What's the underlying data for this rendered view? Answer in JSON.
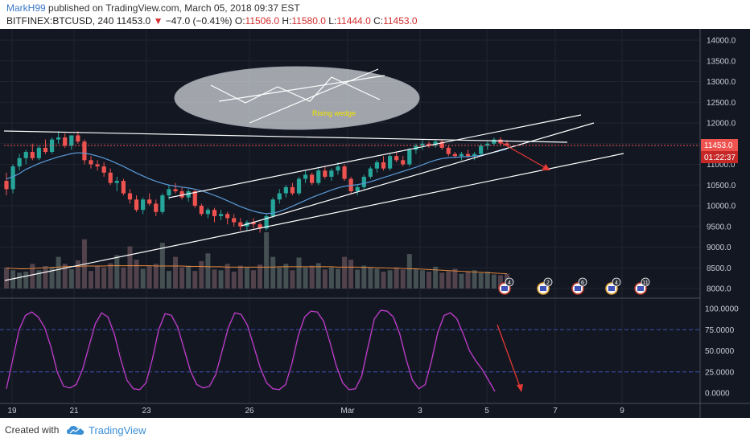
{
  "header": {
    "author": "MarkH99",
    "published": "published on TradingView.com, March 05, 2018 09:37 EST",
    "symbol": "BITFINEX:BTCUSD, 240",
    "last": "11453.0",
    "change": "−47.0 (−0.41%)",
    "o_label": "O:",
    "o": "11506.0",
    "h_label": "H:",
    "h": "11580.0",
    "l_label": "L:",
    "l": "11444.0",
    "c_label": "C:",
    "c": "11453.0"
  },
  "footer": {
    "created_with": "Created with",
    "brand": "TradingView"
  },
  "annotation": {
    "text": "Rising wedge"
  },
  "price_tags": {
    "last": "11453.0",
    "countdown": "01:22:37"
  },
  "event_markers": [
    "4",
    "2",
    "6",
    "4",
    "11"
  ],
  "colors": {
    "up": "#26a69a",
    "down": "#ef5350",
    "stoch_k": "#c13ccf",
    "stoch_d": "#1b1e26",
    "ma": "#5a9bd8",
    "bg": "#131722",
    "vol_ma": "#e8893a",
    "ref": "#3f51b5",
    "arrow": "#e53935"
  },
  "chart_data": [
    {
      "type": "candlestick",
      "symbol": "BITFINEX:BTCUSD",
      "interval": "240",
      "y_ticks": [
        "8000.0",
        "8500.0",
        "9000.0",
        "9500.0",
        "10000.0",
        "10500.0",
        "11000.0",
        "11500.0",
        "12000.0",
        "12500.0",
        "13000.0",
        "13500.0",
        "14000.0"
      ],
      "x_ticks": [
        "19",
        "21",
        "23",
        "26",
        "Mar",
        "3",
        "5",
        "7",
        "9"
      ],
      "ylim": [
        7800,
        14300
      ],
      "ohlc": [
        [
          10600,
          10800,
          10250,
          10400
        ],
        [
          10400,
          11000,
          10300,
          10950
        ],
        [
          10950,
          11250,
          10850,
          11150
        ],
        [
          11150,
          11350,
          11000,
          11300
        ],
        [
          11300,
          11500,
          11100,
          11150
        ],
        [
          11150,
          11450,
          11100,
          11400
        ],
        [
          11400,
          11600,
          11250,
          11300
        ],
        [
          11300,
          11650,
          11250,
          11600
        ],
        [
          11600,
          11800,
          11500,
          11650
        ],
        [
          11650,
          11750,
          11400,
          11450
        ],
        [
          11450,
          11700,
          11350,
          11700
        ],
        [
          11700,
          11800,
          11500,
          11550
        ],
        [
          11550,
          11600,
          11000,
          11100
        ],
        [
          11100,
          11200,
          10900,
          11000
        ],
        [
          11000,
          11100,
          10850,
          10950
        ],
        [
          10950,
          11050,
          10700,
          10800
        ],
        [
          10800,
          10900,
          10500,
          10550
        ],
        [
          10550,
          10700,
          10350,
          10600
        ],
        [
          10600,
          10650,
          10250,
          10300
        ],
        [
          10300,
          10400,
          10050,
          10150
        ],
        [
          10150,
          10250,
          9850,
          9900
        ],
        [
          9900,
          10200,
          9800,
          10150
        ],
        [
          10150,
          10300,
          10000,
          10050
        ],
        [
          10050,
          10150,
          9750,
          9850
        ],
        [
          9850,
          10300,
          9800,
          10250
        ],
        [
          10250,
          10500,
          10150,
          10400
        ],
        [
          10400,
          10550,
          10300,
          10350
        ],
        [
          10350,
          10450,
          10150,
          10200
        ],
        [
          10200,
          10400,
          10100,
          10350
        ],
        [
          10350,
          10400,
          9950,
          10000
        ],
        [
          10000,
          10050,
          9750,
          9800
        ],
        [
          9800,
          9950,
          9700,
          9900
        ],
        [
          9900,
          9950,
          9600,
          9750
        ],
        [
          9750,
          9900,
          9650,
          9800
        ],
        [
          9800,
          9850,
          9550,
          9700
        ],
        [
          9700,
          9800,
          9500,
          9600
        ],
        [
          9600,
          9700,
          9400,
          9500
        ],
        [
          9500,
          9650,
          9400,
          9600
        ],
        [
          9600,
          9700,
          9450,
          9550
        ],
        [
          9550,
          9600,
          9350,
          9450
        ],
        [
          9450,
          9800,
          9400,
          9750
        ],
        [
          9750,
          10200,
          9700,
          10150
        ],
        [
          10150,
          10400,
          10050,
          10300
        ],
        [
          10300,
          10500,
          10200,
          10450
        ],
        [
          10450,
          10550,
          10250,
          10300
        ],
        [
          10300,
          10700,
          10250,
          10650
        ],
        [
          10650,
          10850,
          10550,
          10750
        ],
        [
          10750,
          10800,
          10500,
          10550
        ],
        [
          10550,
          10900,
          10500,
          10850
        ],
        [
          10850,
          10950,
          10650,
          10700
        ],
        [
          10700,
          10900,
          10600,
          10850
        ],
        [
          10850,
          11050,
          10750,
          10950
        ],
        [
          10950,
          11000,
          10600,
          10650
        ],
        [
          10650,
          10700,
          10300,
          10350
        ],
        [
          10350,
          10500,
          10250,
          10450
        ],
        [
          10450,
          10750,
          10400,
          10700
        ],
        [
          10700,
          10950,
          10650,
          10900
        ],
        [
          10900,
          11100,
          10800,
          11050
        ],
        [
          11050,
          11200,
          10850,
          10900
        ],
        [
          10900,
          11250,
          10850,
          11200
        ],
        [
          11200,
          11300,
          11050,
          11100
        ],
        [
          11100,
          11200,
          10950,
          11000
        ],
        [
          11000,
          11400,
          10950,
          11350
        ],
        [
          11350,
          11500,
          11250,
          11450
        ],
        [
          11450,
          11600,
          11350,
          11500
        ],
        [
          11500,
          11550,
          11400,
          11450
        ],
        [
          11450,
          11600,
          11400,
          11550
        ],
        [
          11550,
          11600,
          11350,
          11400
        ],
        [
          11400,
          11450,
          11200,
          11250
        ],
        [
          11250,
          11300,
          11150,
          11200
        ],
        [
          11200,
          11300,
          11100,
          11250
        ],
        [
          11250,
          11350,
          11150,
          11200
        ],
        [
          11200,
          11300,
          11100,
          11250
        ],
        [
          11250,
          11500,
          11200,
          11450
        ],
        [
          11450,
          11550,
          11350,
          11500
        ],
        [
          11500,
          11650,
          11450,
          11600
        ],
        [
          11600,
          11650,
          11450,
          11506
        ],
        [
          11506,
          11580,
          11444,
          11453
        ]
      ],
      "sma": [
        10650,
        10700,
        10780,
        10880,
        10950,
        11020,
        11080,
        11130,
        11180,
        11220,
        11260,
        11280,
        11270,
        11240,
        11200,
        11150,
        11090,
        11020,
        10950,
        10870,
        10790,
        10720,
        10650,
        10590,
        10540,
        10500,
        10470,
        10450,
        10430,
        10400,
        10360,
        10310,
        10250,
        10190,
        10120,
        10050,
        9980,
        9920,
        9870,
        9830,
        9810,
        9820,
        9860,
        9920,
        9990,
        10060,
        10130,
        10200,
        10260,
        10320,
        10380,
        10430,
        10470,
        10490,
        10510,
        10540,
        10580,
        10630,
        10680,
        10730,
        10780,
        10830,
        10880,
        10930,
        10990,
        11050,
        11100,
        11140,
        11160,
        11170,
        11180,
        11190,
        11200,
        11220,
        11250,
        11290,
        11330,
        11370
      ],
      "volume": [
        600,
        520,
        450,
        480,
        700,
        520,
        640,
        600,
        900,
        700,
        550,
        800,
        1400,
        500,
        650,
        600,
        720,
        950,
        600,
        1200,
        820,
        560,
        650,
        700,
        1300,
        500,
        900,
        600,
        650,
        500,
        780,
        1000,
        540,
        520,
        700,
        480,
        650,
        600,
        520,
        680,
        1600,
        900,
        600,
        700,
        520,
        880,
        600,
        650,
        720,
        540,
        600,
        560,
        900,
        820,
        540,
        650,
        600,
        560,
        480,
        520,
        600,
        540,
        980,
        560,
        520,
        480,
        620,
        450,
        500,
        560,
        420,
        470,
        520,
        440,
        480,
        400,
        380,
        420
      ],
      "volume_ma": [
        580,
        570,
        560,
        560,
        570,
        580,
        590,
        600,
        610,
        620,
        630,
        630,
        640,
        640,
        640,
        640,
        650,
        650,
        650,
        650,
        650,
        650,
        650,
        640,
        640,
        640,
        640,
        640,
        630,
        630,
        630,
        620,
        620,
        620,
        610,
        610,
        610,
        610,
        610,
        610,
        610,
        610,
        620,
        620,
        620,
        620,
        620,
        620,
        620,
        620,
        620,
        610,
        610,
        610,
        610,
        600,
        600,
        590,
        590,
        580,
        580,
        570,
        560,
        560,
        550,
        540,
        530,
        520,
        510,
        500,
        490,
        480,
        470,
        460,
        450,
        440,
        430,
        420
      ]
    },
    {
      "type": "line",
      "name": "stochastic",
      "y_ticks": [
        "0.0000",
        "25.0000",
        "50.0000",
        "75.0000",
        "100.0000"
      ],
      "ylim": [
        -15,
        108
      ],
      "k": [
        5,
        40,
        75,
        92,
        96,
        90,
        78,
        55,
        25,
        8,
        6,
        10,
        28,
        55,
        82,
        95,
        90,
        70,
        40,
        15,
        5,
        4,
        12,
        40,
        75,
        94,
        92,
        78,
        52,
        26,
        10,
        6,
        8,
        22,
        50,
        78,
        95,
        93,
        80,
        55,
        30,
        12,
        5,
        4,
        10,
        35,
        68,
        90,
        97,
        96,
        85,
        60,
        32,
        12,
        4,
        5,
        20,
        55,
        88,
        98,
        97,
        90,
        70,
        40,
        15,
        5,
        10,
        38,
        72,
        92,
        95,
        88,
        70,
        50,
        38,
        28,
        15,
        2
      ],
      "d": [
        8,
        30,
        65,
        88,
        95,
        92,
        82,
        62,
        32,
        12,
        5,
        8,
        22,
        48,
        76,
        93,
        92,
        76,
        48,
        20,
        7,
        3,
        8,
        30,
        68,
        92,
        94,
        82,
        58,
        30,
        12,
        5,
        6,
        18,
        44,
        74,
        94,
        95,
        84,
        60,
        35,
        15,
        6,
        3,
        7,
        28,
        62,
        88,
        98,
        97,
        88,
        66,
        38,
        15,
        4,
        3,
        15,
        48,
        84,
        98,
        98,
        92,
        74,
        44,
        18,
        6,
        7,
        32,
        68,
        90,
        96,
        90,
        72,
        50,
        36,
        24,
        10,
        1
      ]
    }
  ]
}
